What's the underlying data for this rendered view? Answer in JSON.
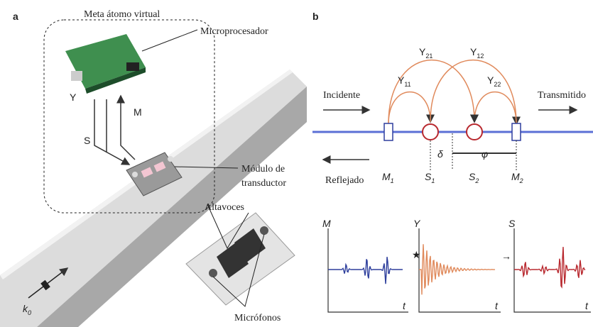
{
  "panel_a": {
    "label": "a",
    "meta_atom": "Meta átomo virtual",
    "microprocessor": "Microprocesador",
    "arrow_labels": {
      "y": "Y",
      "m": "M",
      "s": "S"
    },
    "transducer": [
      "Módulo de",
      "transductor"
    ],
    "speakers": "Altavoces",
    "microphones": "Micrófonos",
    "wavevector": {
      "text": "k",
      "sub": "0"
    }
  },
  "panel_b": {
    "label": "b",
    "incident": "Incidente",
    "transmitted": "Transmitido",
    "reflected": "Reflejado",
    "couplings": [
      {
        "text": "Y",
        "sub": "11"
      },
      {
        "text": "Y",
        "sub": "21"
      },
      {
        "text": "Y",
        "sub": "12"
      },
      {
        "text": "Y",
        "sub": "22"
      }
    ],
    "nodes": [
      {
        "text": "M",
        "sub": "1"
      },
      {
        "text": "S",
        "sub": "1"
      },
      {
        "text": "S",
        "sub": "2"
      },
      {
        "text": "M",
        "sub": "2"
      }
    ],
    "delta": "δ",
    "phi": "φ",
    "plots": [
      {
        "y": "M",
        "x": "t"
      },
      {
        "y": "Y",
        "x": "t"
      },
      {
        "y": "S",
        "x": "t"
      }
    ]
  }
}
